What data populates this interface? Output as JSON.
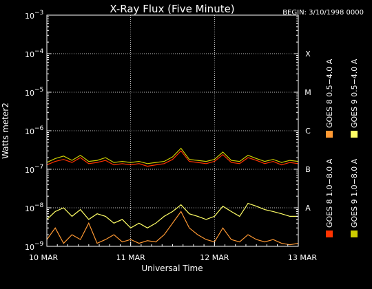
{
  "chart_data": {
    "type": "line",
    "title": "X-Ray Flux (Five Minute)",
    "begin_label": "BEGIN: 3/10/1998 0000",
    "xlabel": "Universal Time",
    "ylabel": "Watts meter2",
    "yscale": "log",
    "ylim": [
      1e-09,
      0.001
    ],
    "y_tick_labels": [
      {
        "value": 0.001,
        "base": "10",
        "exp": "−3"
      },
      {
        "value": 0.0001,
        "base": "10",
        "exp": "−4"
      },
      {
        "value": 1e-05,
        "base": "10",
        "exp": "−5"
      },
      {
        "value": 1e-06,
        "base": "10",
        "exp": "−6"
      },
      {
        "value": 1e-07,
        "base": "10",
        "exp": "−7"
      },
      {
        "value": 1e-08,
        "base": "10",
        "exp": "−8"
      },
      {
        "value": 1e-09,
        "base": "10",
        "exp": "−9"
      }
    ],
    "x_ticks": [
      "10 MAR",
      "11 MAR",
      "12 MAR",
      "13 MAR"
    ],
    "xlim_days": [
      10,
      13
    ],
    "grid": true,
    "flare_classes": [
      {
        "label": "X",
        "value": 0.0001
      },
      {
        "label": "M",
        "value": 1e-05
      },
      {
        "label": "C",
        "value": 1e-06
      },
      {
        "label": "B",
        "value": 1e-07
      },
      {
        "label": "A",
        "value": 1e-08
      }
    ],
    "legend_position": "right",
    "legend": [
      {
        "label": "GOES 8 1.0−8.0 A",
        "color": "#ff3300"
      },
      {
        "label": "GOES 8 0.5−4.0 A",
        "color": "#ff9933"
      },
      {
        "label": "GOES 9 1.0−8.0 A",
        "color": "#cccc00"
      },
      {
        "label": "GOES 9 0.5−4.0 A",
        "color": "#ffff66"
      }
    ],
    "series": [
      {
        "name": "GOES 8 1.0−8.0 A",
        "color": "#ff3300",
        "x": [
          10.0,
          10.1,
          10.2,
          10.3,
          10.4,
          10.5,
          10.6,
          10.7,
          10.8,
          10.9,
          11.0,
          11.1,
          11.2,
          11.3,
          11.4,
          11.5,
          11.6,
          11.7,
          11.8,
          11.9,
          12.0,
          12.1,
          12.2,
          12.3,
          12.4,
          12.5,
          12.6,
          12.7,
          12.8,
          12.9,
          13.0
        ],
        "y": [
          1.3e-07,
          1.6e-07,
          1.8e-07,
          1.5e-07,
          2e-07,
          1.4e-07,
          1.5e-07,
          1.7e-07,
          1.3e-07,
          1.4e-07,
          1.3e-07,
          1.4e-07,
          1.2e-07,
          1.3e-07,
          1.4e-07,
          1.8e-07,
          3e-07,
          1.6e-07,
          1.5e-07,
          1.4e-07,
          1.6e-07,
          2.4e-07,
          1.5e-07,
          1.4e-07,
          2e-07,
          1.7e-07,
          1.4e-07,
          1.6e-07,
          1.3e-07,
          1.5e-07,
          1.4e-07
        ]
      },
      {
        "name": "GOES 8 0.5−4.0 A",
        "color": "#ff9933",
        "x": [
          10.0,
          10.1,
          10.2,
          10.3,
          10.4,
          10.5,
          10.6,
          10.7,
          10.8,
          10.9,
          11.0,
          11.1,
          11.2,
          11.3,
          11.4,
          11.5,
          11.6,
          11.7,
          11.8,
          11.9,
          12.0,
          12.1,
          12.2,
          12.3,
          12.4,
          12.5,
          12.6,
          12.7,
          12.8,
          12.9,
          13.0
        ],
        "y": [
          1.5e-09,
          3e-09,
          1.2e-09,
          2e-09,
          1.5e-09,
          4e-09,
          1.2e-09,
          1.5e-09,
          2e-09,
          1.3e-09,
          1.5e-09,
          1.2e-09,
          1.4e-09,
          1.3e-09,
          2e-09,
          4e-09,
          8e-09,
          3e-09,
          2e-09,
          1.5e-09,
          1.3e-09,
          3e-09,
          1.5e-09,
          1.3e-09,
          2e-09,
          1.5e-09,
          1.3e-09,
          1.5e-09,
          1.2e-09,
          1.1e-09,
          1.2e-09
        ]
      },
      {
        "name": "GOES 9 1.0−8.0 A",
        "color": "#cccc00",
        "x": [
          10.0,
          10.1,
          10.2,
          10.3,
          10.4,
          10.5,
          10.6,
          10.7,
          10.8,
          10.9,
          11.0,
          11.1,
          11.2,
          11.3,
          11.4,
          11.5,
          11.6,
          11.7,
          11.8,
          11.9,
          12.0,
          12.1,
          12.2,
          12.3,
          12.4,
          12.5,
          12.6,
          12.7,
          12.8,
          12.9,
          13.0
        ],
        "y": [
          1.5e-07,
          1.9e-07,
          2.2e-07,
          1.7e-07,
          2.3e-07,
          1.6e-07,
          1.7e-07,
          2e-07,
          1.5e-07,
          1.6e-07,
          1.5e-07,
          1.6e-07,
          1.4e-07,
          1.5e-07,
          1.6e-07,
          2.1e-07,
          3.5e-07,
          1.8e-07,
          1.7e-07,
          1.6e-07,
          1.8e-07,
          2.8e-07,
          1.7e-07,
          1.6e-07,
          2.3e-07,
          1.9e-07,
          1.6e-07,
          1.8e-07,
          1.5e-07,
          1.7e-07,
          1.6e-07
        ]
      },
      {
        "name": "GOES 9 0.5−4.0 A",
        "color": "#ffff66",
        "x": [
          10.0,
          10.1,
          10.2,
          10.3,
          10.4,
          10.5,
          10.6,
          10.7,
          10.8,
          10.9,
          11.0,
          11.1,
          11.2,
          11.3,
          11.4,
          11.5,
          11.6,
          11.7,
          11.8,
          11.9,
          12.0,
          12.1,
          12.2,
          12.3,
          12.4,
          12.5,
          12.6,
          12.7,
          12.8,
          12.9,
          13.0
        ],
        "y": [
          5e-09,
          8e-09,
          1e-08,
          6e-09,
          9e-09,
          5e-09,
          7e-09,
          6e-09,
          4e-09,
          5e-09,
          3e-09,
          4e-09,
          3e-09,
          4e-09,
          6e-09,
          8e-09,
          1.2e-08,
          7e-09,
          6e-09,
          5e-09,
          6e-09,
          1.1e-08,
          8e-09,
          6e-09,
          1.3e-08,
          1.1e-08,
          9e-09,
          8e-09,
          7e-09,
          6e-09,
          6e-09
        ]
      }
    ]
  }
}
